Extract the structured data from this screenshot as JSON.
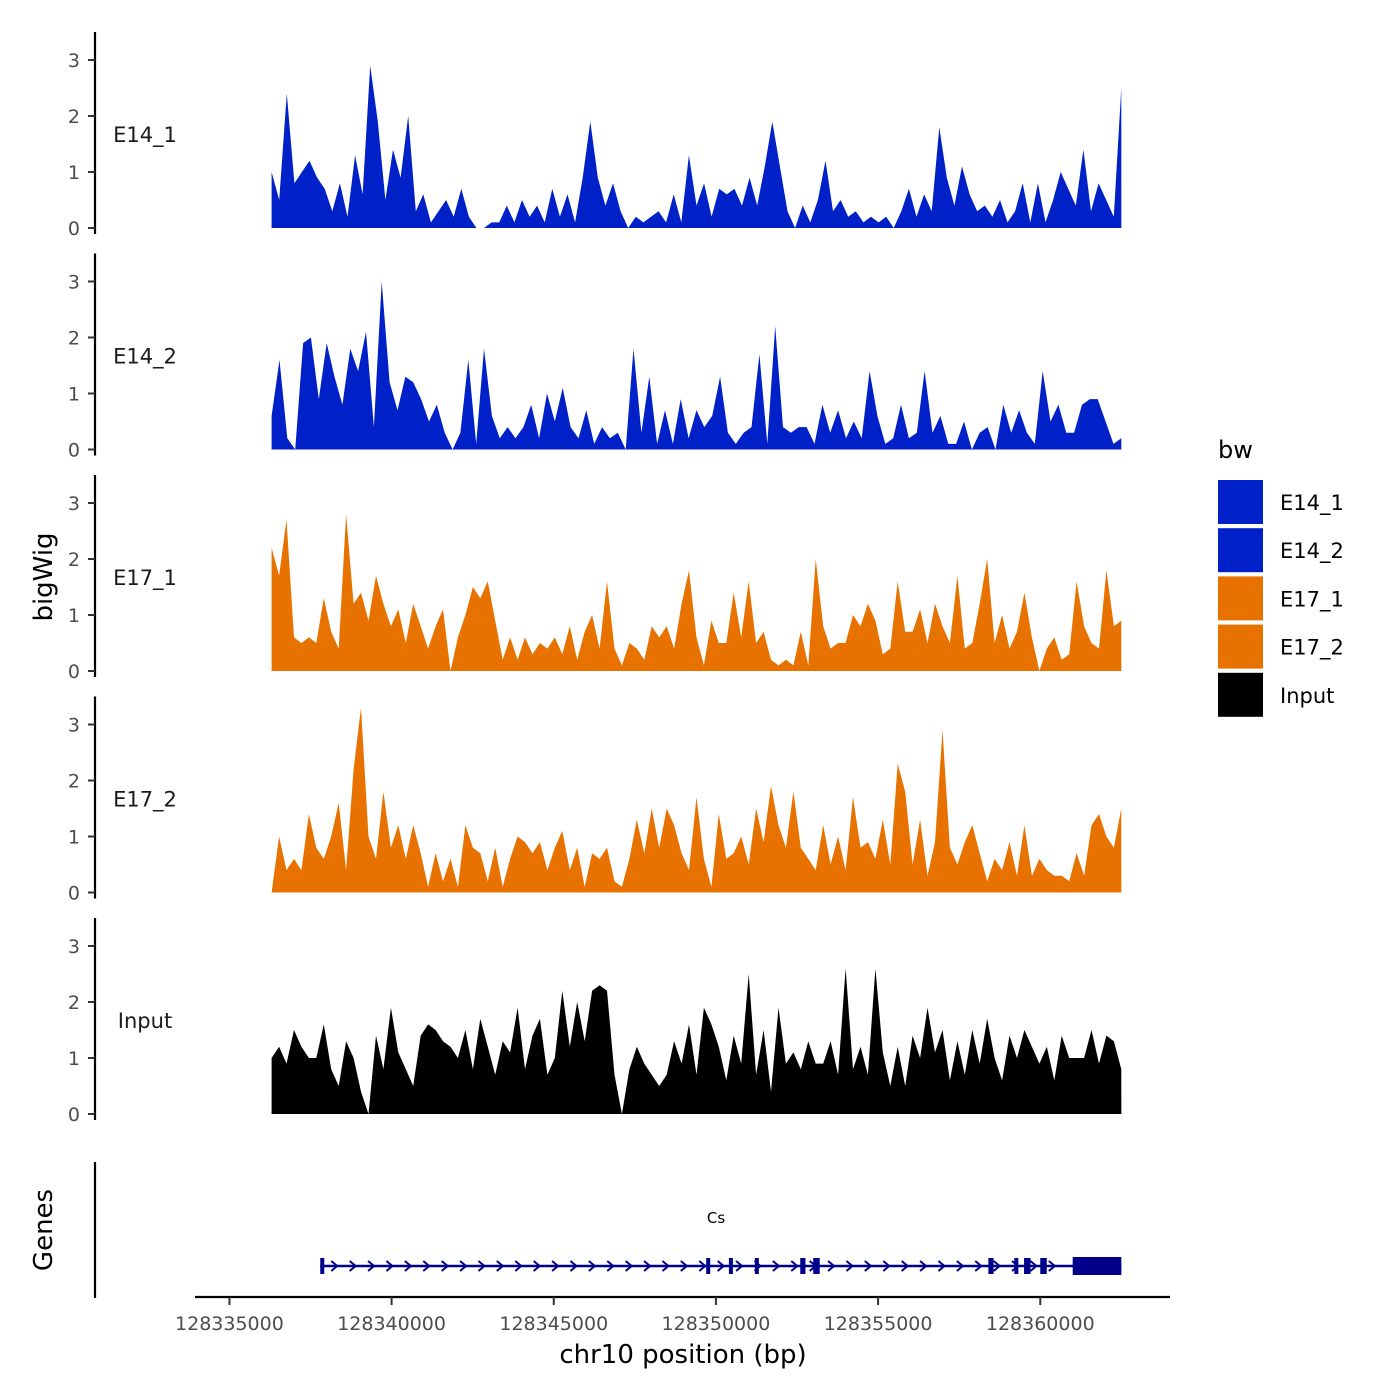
{
  "chart_data": {
    "type": "area",
    "ylabel": "bigWig",
    "xlabel": "chr10 position (bp)",
    "xlim": [
      128334000,
      128364000
    ],
    "x_ticks": [
      128335000,
      128340000,
      128345000,
      128350000,
      128355000,
      128360000
    ],
    "x_tick_labels": [
      "128335000",
      "128340000",
      "128345000",
      "128350000",
      "128355000",
      "128360000"
    ],
    "signal_range": [
      128336300,
      128362500
    ],
    "ylim": [
      0,
      3.5
    ],
    "y_ticks": [
      0,
      1,
      2,
      3
    ],
    "y_tick_labels": [
      "0",
      "1",
      "2",
      "3"
    ],
    "legend": {
      "title": "bw",
      "items": [
        {
          "label": "E14_1",
          "color": "#0020C8"
        },
        {
          "label": "E14_2",
          "color": "#0020C8"
        },
        {
          "label": "E17_1",
          "color": "#E87200"
        },
        {
          "label": "E17_2",
          "color": "#E87200"
        },
        {
          "label": "Input",
          "color": "#000000"
        }
      ]
    },
    "series": [
      {
        "name": "E14_1",
        "color": "#0020C8",
        "values": [
          1.0,
          0.5,
          2.4,
          0.8,
          1.0,
          1.2,
          0.9,
          0.7,
          0.3,
          0.8,
          0.2,
          1.3,
          0.6,
          2.9,
          1.9,
          0.5,
          1.4,
          0.9,
          2.0,
          0.3,
          0.6,
          0.1,
          0.3,
          0.5,
          0.2,
          0.7,
          0.2,
          0.0,
          0.0,
          0.1,
          0.1,
          0.4,
          0.1,
          0.5,
          0.2,
          0.4,
          0.1,
          0.7,
          0.2,
          0.6,
          0.1,
          0.9,
          1.9,
          0.9,
          0.4,
          0.8,
          0.3,
          0.0,
          0.2,
          0.1,
          0.2,
          0.3,
          0.1,
          0.6,
          0.1,
          1.3,
          0.4,
          0.8,
          0.2,
          0.7,
          0.6,
          0.7,
          0.4,
          0.9,
          0.4,
          1.1,
          1.9,
          1.1,
          0.3,
          0.0,
          0.4,
          0.1,
          0.5,
          1.2,
          0.3,
          0.5,
          0.2,
          0.3,
          0.1,
          0.2,
          0.1,
          0.2,
          0.0,
          0.3,
          0.7,
          0.2,
          0.6,
          0.3,
          1.8,
          0.9,
          0.4,
          1.1,
          0.6,
          0.3,
          0.4,
          0.2,
          0.5,
          0.1,
          0.3,
          0.8,
          0.1,
          0.8,
          0.1,
          0.5,
          1.0,
          0.7,
          0.4,
          1.4,
          0.3,
          0.8,
          0.5,
          0.2,
          2.5
        ]
      },
      {
        "name": "E14_2",
        "color": "#0020C8",
        "values": [
          0.6,
          1.6,
          0.2,
          0.0,
          1.9,
          2.0,
          0.9,
          1.9,
          1.3,
          0.8,
          1.8,
          1.4,
          2.1,
          0.4,
          3.0,
          1.2,
          0.7,
          1.3,
          1.2,
          0.9,
          0.5,
          0.8,
          0.3,
          0.0,
          0.3,
          1.6,
          0.1,
          1.8,
          0.6,
          0.2,
          0.4,
          0.2,
          0.4,
          0.8,
          0.2,
          1.0,
          0.5,
          1.1,
          0.4,
          0.2,
          0.7,
          0.1,
          0.4,
          0.2,
          0.3,
          0.0,
          1.8,
          0.3,
          1.3,
          0.1,
          0.7,
          0.1,
          0.9,
          0.2,
          0.7,
          0.4,
          0.6,
          1.3,
          0.3,
          0.1,
          0.3,
          0.4,
          1.7,
          0.1,
          2.2,
          0.4,
          0.3,
          0.4,
          0.4,
          0.1,
          0.8,
          0.3,
          0.7,
          0.2,
          0.5,
          0.2,
          1.4,
          0.6,
          0.1,
          0.2,
          0.8,
          0.2,
          0.3,
          1.4,
          0.3,
          0.6,
          0.1,
          0.1,
          0.5,
          0.0,
          0.3,
          0.4,
          0.0,
          0.8,
          0.3,
          0.7,
          0.3,
          0.1,
          1.4,
          0.5,
          0.8,
          0.3,
          0.3,
          0.8,
          0.9,
          0.9,
          0.5,
          0.1,
          0.2
        ]
      },
      {
        "name": "E17_1",
        "color": "#E87200",
        "values": [
          2.2,
          1.7,
          2.7,
          0.6,
          0.5,
          0.6,
          0.5,
          1.3,
          0.7,
          0.4,
          2.8,
          1.2,
          1.4,
          0.9,
          1.7,
          1.2,
          0.8,
          1.1,
          0.5,
          1.2,
          0.8,
          0.4,
          0.8,
          1.1,
          0.0,
          0.6,
          1.0,
          1.5,
          1.3,
          1.6,
          0.9,
          0.2,
          0.6,
          0.2,
          0.6,
          0.3,
          0.5,
          0.4,
          0.6,
          0.3,
          0.8,
          0.2,
          0.7,
          1.0,
          0.4,
          1.6,
          0.4,
          0.1,
          0.5,
          0.4,
          0.2,
          0.8,
          0.6,
          0.8,
          0.4,
          1.2,
          1.8,
          0.6,
          0.1,
          0.9,
          0.5,
          0.5,
          1.4,
          0.6,
          1.6,
          0.5,
          0.7,
          0.2,
          0.1,
          0.2,
          0.1,
          0.7,
          0.1,
          2.0,
          0.8,
          0.4,
          0.5,
          0.5,
          1.0,
          0.8,
          1.2,
          0.9,
          0.3,
          0.4,
          1.6,
          0.7,
          0.7,
          1.1,
          0.5,
          1.2,
          0.8,
          0.5,
          1.7,
          0.4,
          0.5,
          1.2,
          2.0,
          0.5,
          1.0,
          0.4,
          0.7,
          1.4,
          0.6,
          0.0,
          0.4,
          0.6,
          0.2,
          0.3,
          1.6,
          0.8,
          0.5,
          0.4,
          1.8,
          0.8,
          0.9
        ]
      },
      {
        "name": "E17_2",
        "color": "#E87200",
        "values": [
          0.0,
          1.0,
          0.4,
          0.6,
          0.4,
          1.4,
          0.8,
          0.6,
          1.0,
          1.6,
          0.4,
          2.2,
          3.3,
          1.0,
          0.6,
          1.8,
          0.8,
          1.2,
          0.6,
          1.2,
          0.7,
          0.1,
          0.7,
          0.2,
          0.6,
          0.1,
          1.2,
          0.8,
          0.7,
          0.2,
          0.8,
          0.1,
          0.6,
          1.0,
          0.9,
          0.7,
          0.9,
          0.4,
          0.8,
          1.1,
          0.4,
          0.8,
          0.1,
          0.7,
          0.6,
          0.8,
          0.2,
          0.1,
          0.6,
          1.3,
          0.7,
          1.5,
          0.8,
          1.5,
          1.2,
          0.7,
          0.4,
          1.7,
          0.6,
          0.1,
          1.4,
          0.6,
          0.7,
          1.0,
          0.5,
          1.5,
          0.9,
          1.9,
          1.2,
          0.8,
          1.8,
          0.8,
          0.6,
          0.4,
          1.2,
          0.5,
          1.0,
          0.4,
          1.7,
          0.8,
          0.9,
          0.6,
          1.3,
          0.5,
          2.3,
          1.8,
          0.5,
          1.3,
          0.3,
          0.9,
          2.9,
          0.8,
          0.5,
          0.9,
          1.2,
          0.7,
          0.2,
          0.6,
          0.4,
          0.9,
          0.3,
          1.2,
          0.3,
          0.6,
          0.4,
          0.3,
          0.3,
          0.2,
          0.7,
          0.3,
          1.2,
          1.4,
          1.0,
          0.8,
          1.5
        ]
      },
      {
        "name": "Input",
        "color": "#000000",
        "values": [
          1.0,
          1.2,
          0.9,
          1.5,
          1.2,
          1.0,
          1.0,
          1.6,
          0.8,
          0.5,
          1.3,
          1.0,
          0.4,
          0.0,
          1.4,
          0.8,
          1.9,
          1.1,
          0.8,
          0.5,
          1.4,
          1.6,
          1.5,
          1.3,
          1.2,
          1.0,
          1.5,
          0.8,
          1.7,
          1.2,
          0.7,
          1.3,
          1.1,
          1.9,
          0.8,
          1.4,
          1.7,
          0.7,
          1.0,
          2.2,
          1.2,
          2.0,
          1.3,
          2.2,
          2.3,
          2.2,
          0.7,
          0.0,
          0.8,
          1.2,
          0.9,
          0.7,
          0.5,
          0.7,
          1.3,
          0.9,
          1.6,
          0.7,
          1.9,
          1.6,
          1.2,
          0.6,
          1.4,
          0.9,
          2.5,
          0.7,
          1.5,
          0.4,
          1.9,
          0.9,
          1.1,
          0.8,
          1.3,
          0.9,
          0.9,
          1.3,
          0.7,
          2.6,
          0.8,
          1.2,
          0.7,
          2.6,
          1.1,
          0.5,
          1.2,
          0.5,
          1.4,
          1.0,
          1.9,
          1.1,
          1.5,
          0.6,
          1.3,
          0.7,
          1.5,
          0.9,
          1.7,
          1.0,
          0.6,
          1.4,
          1.0,
          1.5,
          1.2,
          0.9,
          1.2,
          0.6,
          1.4,
          1.0,
          1.0,
          1.0,
          1.5,
          0.9,
          1.4,
          1.3,
          0.8
        ]
      }
    ],
    "genes_track": {
      "ylabel": "Genes",
      "gene_name": "Cs",
      "strand": "+",
      "color": "#00008B",
      "start": 128337800,
      "end": 128362500,
      "exons": [
        [
          128337800,
          128337900
        ],
        [
          128349700,
          128349760
        ],
        [
          128350400,
          128350480
        ],
        [
          128351200,
          128351260
        ],
        [
          128352600,
          128352760
        ],
        [
          128353000,
          128353200
        ],
        [
          128358400,
          128358560
        ],
        [
          128359200,
          128359300
        ],
        [
          128359500,
          128359700
        ],
        [
          128360000,
          128360200
        ],
        [
          128361000,
          128362500
        ]
      ]
    }
  }
}
